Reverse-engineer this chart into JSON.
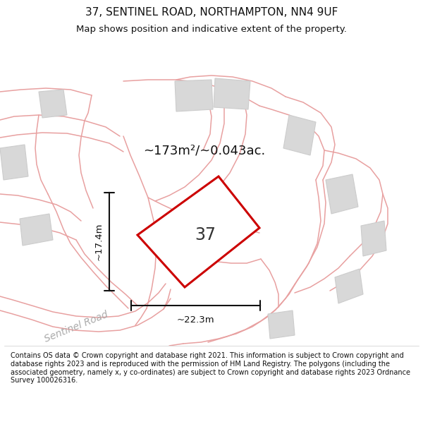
{
  "title": "37, SENTINEL ROAD, NORTHAMPTON, NN4 9UF",
  "subtitle": "Map shows position and indicative extent of the property.",
  "footnote": "Contains OS data © Crown copyright and database right 2021. This information is subject to Crown copyright and database rights 2023 and is reproduced with the permission of HM Land Registry. The polygons (including the associated geometry, namely x, y co-ordinates) are subject to Crown copyright and database rights 2023 Ordnance Survey 100026316.",
  "map_background": "#f0efef",
  "title_color": "#111111",
  "subtitle_color": "#111111",
  "footnote_color": "#111111",
  "road_label": "Sentinel Road",
  "road_label_color": "#aaaaaa",
  "area_label": "~173m²/~0.043ac.",
  "width_label": "~22.3m",
  "height_label": "~17.4m",
  "plot_number": "37",
  "highlight_color": "#cc0000",
  "highlight_lw": 2.2,
  "building_fill": "#d8d8d8",
  "building_edge": "#cccccc",
  "road_color": "#e8a0a0",
  "road_lw": 1.1,
  "dim_color": "#111111"
}
